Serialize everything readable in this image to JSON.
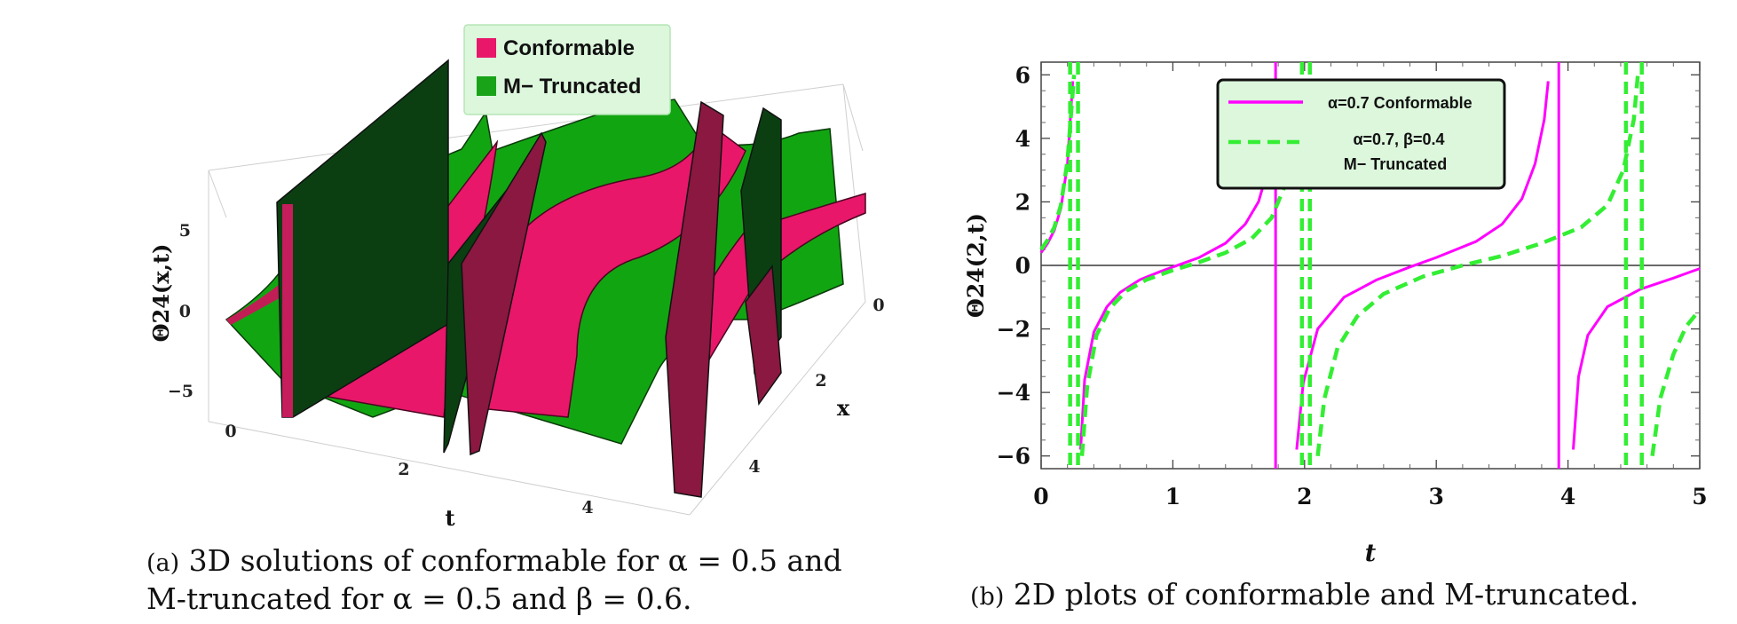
{
  "subfigure_a": {
    "caption_tag": "(a)",
    "caption_line1": "3D solutions of conformable for α = 0.5 and",
    "caption_line2": "M-truncated for α = 0.5 and β = 0.6.",
    "legend": [
      "Conformable",
      "M− Truncated"
    ]
  },
  "subfigure_b": {
    "caption_tag": "(b)",
    "caption_text": "2D plots of conformable and M-truncated.",
    "legend_conformable": "α=0.7 Conformable",
    "legend_mtrunc_line1": "α=0.7, β=0.4",
    "legend_mtrunc_line2": "M− Truncated"
  },
  "colors": {
    "conformable": "#e8176a",
    "m_truncated": "#19a319",
    "magenta_line": "#ff00ff",
    "green_dashed": "#33ee33",
    "legend_bg": "#dcf7dc"
  },
  "chart_data": [
    {
      "type": "surface3d",
      "zlabel": "Θ24(x,t)",
      "xlabel": "t",
      "ylabel": "x",
      "t_ticks": [
        "0",
        "2",
        "4"
      ],
      "x_ticks": [
        "0",
        "2",
        "4"
      ],
      "z_ticks": [
        "5",
        "0",
        "−5"
      ],
      "t_range": [
        0,
        5
      ],
      "x_range": [
        0,
        5
      ],
      "z_range": [
        -6,
        6
      ],
      "series": [
        {
          "name": "Conformable",
          "color": "#e8176a",
          "alpha": 0.5
        },
        {
          "name": "M− Truncated",
          "color": "#19a319",
          "alpha": 0.5,
          "beta": 0.6
        }
      ],
      "legend_position": "top-center"
    },
    {
      "type": "line",
      "xlabel": "t",
      "ylabel": "Θ24(2,t)",
      "xlim": [
        0,
        5
      ],
      "ylim": [
        -6.4,
        6.4
      ],
      "x_ticks": [
        0,
        1,
        2,
        3,
        4,
        5
      ],
      "y_ticks": [
        6,
        4,
        2,
        0,
        -2,
        -4,
        -6
      ],
      "y_tick_labels": [
        "6",
        "4",
        "2",
        "0",
        "−2",
        "−4",
        "−6"
      ],
      "legend_position": "top-center",
      "series": [
        {
          "name": "α=0.7 Conformable",
          "style": "solid",
          "color": "#ff00ff",
          "segments": [
            [
              [
                0.0,
                0.4
              ],
              [
                0.05,
                0.7
              ],
              [
                0.1,
                1.1
              ],
              [
                0.15,
                1.8
              ],
              [
                0.2,
                3.2
              ],
              [
                0.24,
                5.8
              ]
            ],
            [
              [
                0.3,
                -5.8
              ],
              [
                0.33,
                -3.6
              ],
              [
                0.4,
                -2.1
              ],
              [
                0.5,
                -1.3
              ],
              [
                0.6,
                -0.85
              ],
              [
                0.75,
                -0.45
              ],
              [
                0.9,
                -0.2
              ],
              [
                1.0,
                -0.05
              ],
              [
                1.2,
                0.25
              ],
              [
                1.4,
                0.7
              ],
              [
                1.55,
                1.3
              ],
              [
                1.65,
                2.0
              ],
              [
                1.72,
                3.0
              ],
              [
                1.78,
                4.5
              ],
              [
                1.8,
                5.8
              ]
            ],
            [
              [
                1.94,
                -5.8
              ],
              [
                1.99,
                -3.7
              ],
              [
                2.1,
                -2.0
              ],
              [
                2.3,
                -1.0
              ],
              [
                2.55,
                -0.45
              ],
              [
                2.8,
                -0.05
              ],
              [
                3.0,
                0.25
              ],
              [
                3.3,
                0.75
              ],
              [
                3.5,
                1.3
              ],
              [
                3.65,
                2.1
              ],
              [
                3.75,
                3.2
              ],
              [
                3.82,
                4.6
              ],
              [
                3.85,
                5.8
              ]
            ],
            [
              [
                4.04,
                -5.8
              ],
              [
                4.08,
                -3.5
              ],
              [
                4.15,
                -2.2
              ],
              [
                4.3,
                -1.3
              ],
              [
                4.55,
                -0.75
              ],
              [
                4.8,
                -0.4
              ],
              [
                5.0,
                -0.1
              ]
            ]
          ],
          "vertical_asymptotes": [
            1.78,
            3.93
          ]
        },
        {
          "name": "α=0.7, β=0.4 M− Truncated",
          "style": "dashed",
          "color": "#33ee33",
          "segments": [
            [
              [
                0.0,
                0.5
              ],
              [
                0.05,
                0.8
              ],
              [
                0.1,
                1.2
              ],
              [
                0.15,
                1.9
              ],
              [
                0.2,
                3.3
              ],
              [
                0.25,
                6.0
              ]
            ],
            [
              [
                0.31,
                -6.0
              ],
              [
                0.35,
                -3.8
              ],
              [
                0.42,
                -2.2
              ],
              [
                0.52,
                -1.35
              ],
              [
                0.65,
                -0.8
              ],
              [
                0.8,
                -0.45
              ],
              [
                1.0,
                -0.15
              ],
              [
                1.2,
                0.1
              ],
              [
                1.4,
                0.4
              ],
              [
                1.6,
                0.85
              ],
              [
                1.75,
                1.5
              ],
              [
                1.85,
                2.5
              ],
              [
                1.92,
                4.0
              ],
              [
                1.95,
                6.0
              ]
            ],
            [
              [
                2.1,
                -6.0
              ],
              [
                2.15,
                -4.2
              ],
              [
                2.25,
                -2.6
              ],
              [
                2.4,
                -1.6
              ],
              [
                2.6,
                -0.9
              ],
              [
                2.9,
                -0.35
              ],
              [
                3.2,
                0.0
              ],
              [
                3.5,
                0.3
              ],
              [
                3.8,
                0.7
              ],
              [
                4.1,
                1.2
              ],
              [
                4.3,
                1.9
              ],
              [
                4.42,
                3.0
              ],
              [
                4.5,
                4.6
              ],
              [
                4.53,
                6.0
              ]
            ],
            [
              [
                4.64,
                -6.0
              ],
              [
                4.7,
                -4.2
              ],
              [
                4.8,
                -2.8
              ],
              [
                4.9,
                -1.9
              ],
              [
                5.0,
                -1.4
              ]
            ]
          ],
          "vertical_asymptotes": [
            0.22,
            0.28,
            1.98,
            2.04,
            4.44,
            4.56
          ]
        }
      ]
    }
  ]
}
